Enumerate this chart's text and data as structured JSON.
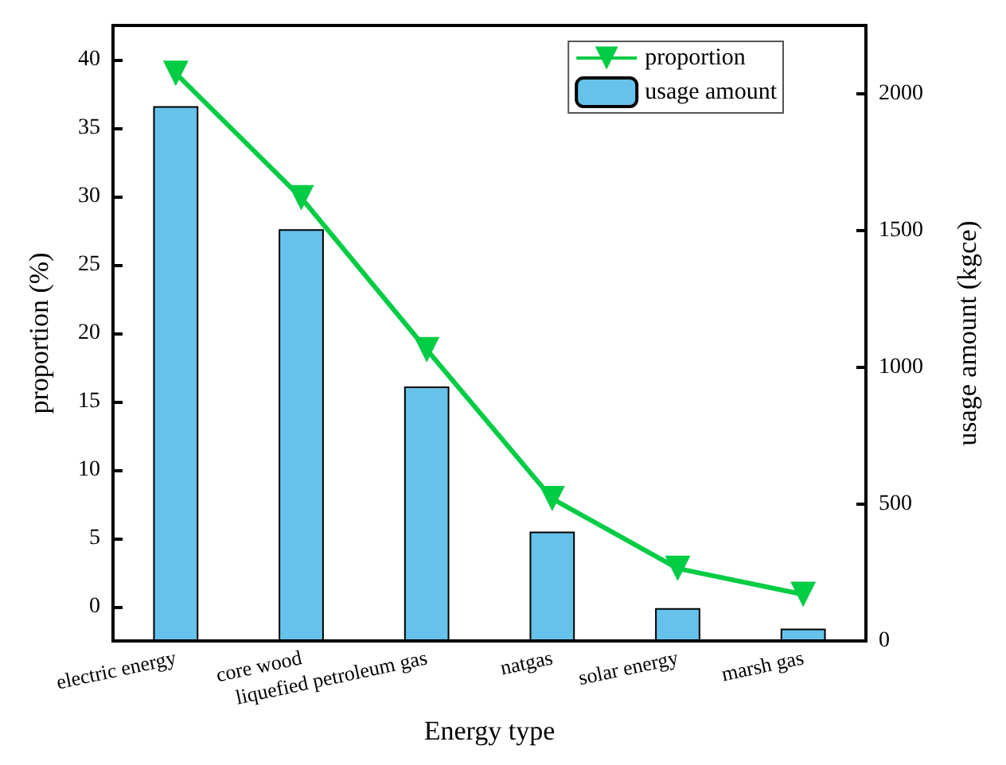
{
  "chart_data": {
    "type": "bar",
    "xlabel": "Energy type",
    "ylabel": "proportion (%)",
    "y2label": "usage amount (kgce)",
    "categories": [
      "electric energy",
      "core wood",
      "liquefied petroleum gas",
      "natgas",
      "solar energy",
      "marsh gas"
    ],
    "series": [
      {
        "name": "proportion",
        "type": "line",
        "color": "#00cc44",
        "marker": "triangle",
        "values": [
          39.0,
          29.9,
          18.8,
          7.9,
          2.8,
          0.9
        ]
      },
      {
        "name": "usage amount",
        "axis": "y2",
        "color": "#66c2ea",
        "values": [
          1955,
          1505,
          930,
          400,
          120,
          45
        ]
      }
    ],
    "ylim": [
      -2.5,
      42.5
    ],
    "yticks": [
      0,
      5,
      10,
      15,
      20,
      25,
      30,
      35,
      40
    ],
    "y2lim": [
      0,
      2250
    ],
    "y2ticks": [
      0,
      500,
      1000,
      1500,
      2000
    ],
    "grid": false,
    "legend": "top right"
  }
}
